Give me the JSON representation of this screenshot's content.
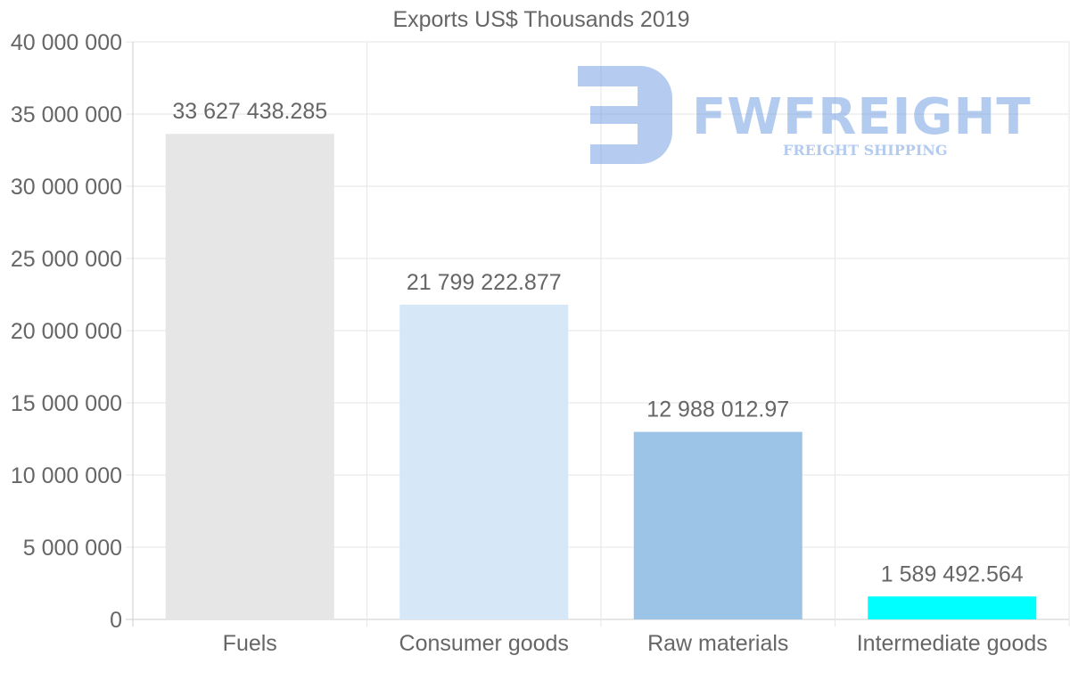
{
  "chart_data": {
    "type": "bar",
    "title": "Exports US$ Thousands 2019",
    "categories": [
      "Fuels",
      "Consumer goods",
      "Raw materials",
      "Intermediate goods"
    ],
    "values": [
      33627438.285,
      21799222.877,
      12988012.97,
      1589492.564
    ],
    "value_labels": [
      "33 627 438.285",
      "21 799 222.877",
      "12 988 012.97",
      "1 589 492.564"
    ],
    "bar_colors": [
      "#e6e6e6",
      "#d6e7f8",
      "#9bc4e6",
      "#00ffff"
    ],
    "xlabel": "",
    "ylabel": "",
    "ylim": [
      0,
      40000000
    ],
    "y_ticks": [
      0,
      5000000,
      10000000,
      15000000,
      20000000,
      25000000,
      30000000,
      35000000,
      40000000
    ],
    "y_tick_labels": [
      "0",
      "5 000 000",
      "10 000 000",
      "15 000 000",
      "20 000 000",
      "25 000 000",
      "30 000 000",
      "35 000 000",
      "40 000 000"
    ],
    "grid": true,
    "legend": "none"
  },
  "watermark": {
    "brand": "FWFREIGHT",
    "tagline": "FREIGHT SHIPPING",
    "color": "#5b8dde"
  },
  "colors": {
    "text": "#666666",
    "grid": "#e6e6e6",
    "axis": "#cccccc"
  }
}
